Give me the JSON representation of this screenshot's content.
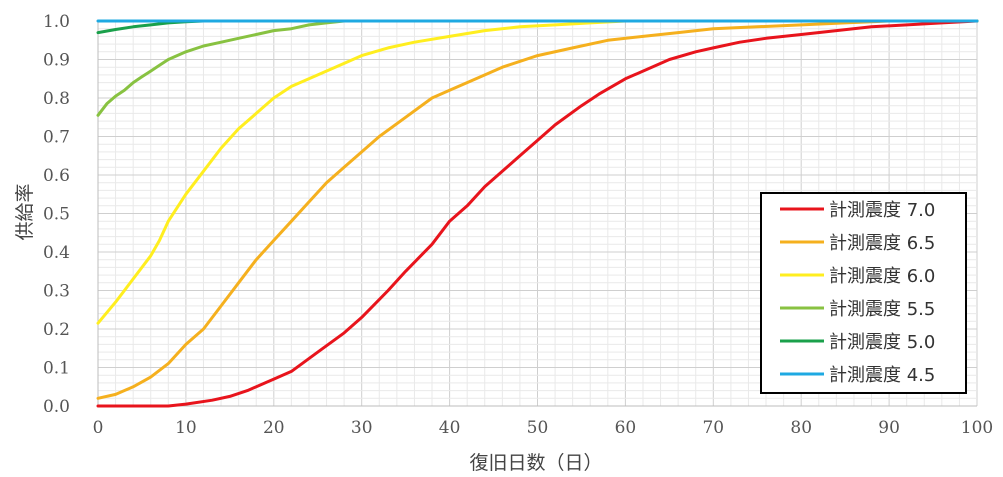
{
  "chart_data": {
    "type": "line",
    "title": "",
    "xlabel": "復旧日数（日）",
    "ylabel": "供給率",
    "xlim": [
      0,
      100
    ],
    "ylim": [
      0,
      1
    ],
    "xticks": [
      0,
      10,
      20,
      30,
      40,
      50,
      60,
      70,
      80,
      90,
      100
    ],
    "yticks": [
      "0.0",
      "0.1",
      "0.2",
      "0.3",
      "0.4",
      "0.5",
      "0.6",
      "0.7",
      "0.8",
      "0.9",
      "1.0"
    ],
    "grid": "on (major and minor)",
    "legend_placement": "bottom-right",
    "series": [
      {
        "name": "計測震度 7.0",
        "color": "#e8141c",
        "points": [
          [
            0,
            0
          ],
          [
            8,
            0
          ],
          [
            10,
            0.005
          ],
          [
            13,
            0.015
          ],
          [
            15,
            0.025
          ],
          [
            17,
            0.04
          ],
          [
            20,
            0.07
          ],
          [
            22,
            0.09
          ],
          [
            25,
            0.14
          ],
          [
            28,
            0.19
          ],
          [
            30,
            0.23
          ],
          [
            33,
            0.3
          ],
          [
            35,
            0.35
          ],
          [
            38,
            0.42
          ],
          [
            40,
            0.48
          ],
          [
            42,
            0.52
          ],
          [
            44,
            0.57
          ],
          [
            46,
            0.61
          ],
          [
            48,
            0.65
          ],
          [
            50,
            0.69
          ],
          [
            52,
            0.73
          ],
          [
            55,
            0.78
          ],
          [
            57,
            0.81
          ],
          [
            60,
            0.85
          ],
          [
            63,
            0.88
          ],
          [
            65,
            0.9
          ],
          [
            68,
            0.92
          ],
          [
            70,
            0.93
          ],
          [
            73,
            0.945
          ],
          [
            76,
            0.955
          ],
          [
            80,
            0.965
          ],
          [
            84,
            0.975
          ],
          [
            88,
            0.985
          ],
          [
            92,
            0.99
          ],
          [
            96,
            0.995
          ],
          [
            100,
            1.0
          ]
        ]
      },
      {
        "name": "計測震度 6.5",
        "color": "#f5b01e",
        "points": [
          [
            0,
            0.02
          ],
          [
            2,
            0.03
          ],
          [
            4,
            0.05
          ],
          [
            6,
            0.075
          ],
          [
            8,
            0.11
          ],
          [
            10,
            0.16
          ],
          [
            12,
            0.2
          ],
          [
            14,
            0.26
          ],
          [
            16,
            0.32
          ],
          [
            18,
            0.38
          ],
          [
            20,
            0.43
          ],
          [
            22,
            0.48
          ],
          [
            24,
            0.53
          ],
          [
            26,
            0.58
          ],
          [
            28,
            0.62
          ],
          [
            30,
            0.66
          ],
          [
            32,
            0.7
          ],
          [
            35,
            0.75
          ],
          [
            38,
            0.8
          ],
          [
            40,
            0.82
          ],
          [
            43,
            0.85
          ],
          [
            46,
            0.88
          ],
          [
            50,
            0.91
          ],
          [
            54,
            0.93
          ],
          [
            58,
            0.95
          ],
          [
            62,
            0.96
          ],
          [
            66,
            0.97
          ],
          [
            70,
            0.98
          ],
          [
            75,
            0.985
          ],
          [
            80,
            0.99
          ],
          [
            85,
            0.995
          ],
          [
            90,
            1.0
          ],
          [
            100,
            1.0
          ]
        ]
      },
      {
        "name": "計測震度 6.0",
        "color": "#ffee1f",
        "points": [
          [
            0,
            0.215
          ],
          [
            2,
            0.27
          ],
          [
            4,
            0.33
          ],
          [
            6,
            0.39
          ],
          [
            7,
            0.43
          ],
          [
            8,
            0.48
          ],
          [
            10,
            0.55
          ],
          [
            12,
            0.61
          ],
          [
            14,
            0.67
          ],
          [
            16,
            0.72
          ],
          [
            18,
            0.76
          ],
          [
            20,
            0.8
          ],
          [
            22,
            0.83
          ],
          [
            25,
            0.86
          ],
          [
            28,
            0.89
          ],
          [
            30,
            0.91
          ],
          [
            33,
            0.93
          ],
          [
            36,
            0.945
          ],
          [
            40,
            0.96
          ],
          [
            44,
            0.975
          ],
          [
            48,
            0.985
          ],
          [
            52,
            0.99
          ],
          [
            56,
            0.995
          ],
          [
            60,
            1.0
          ],
          [
            100,
            1.0
          ]
        ]
      },
      {
        "name": "計測震度 5.5",
        "color": "#88c241",
        "points": [
          [
            0,
            0.755
          ],
          [
            1,
            0.785
          ],
          [
            2,
            0.805
          ],
          [
            3,
            0.82
          ],
          [
            4,
            0.84
          ],
          [
            5,
            0.855
          ],
          [
            6,
            0.87
          ],
          [
            7,
            0.885
          ],
          [
            8,
            0.9
          ],
          [
            10,
            0.92
          ],
          [
            12,
            0.935
          ],
          [
            14,
            0.945
          ],
          [
            16,
            0.955
          ],
          [
            18,
            0.965
          ],
          [
            20,
            0.975
          ],
          [
            22,
            0.98
          ],
          [
            24,
            0.99
          ],
          [
            26,
            0.995
          ],
          [
            28,
            1.0
          ],
          [
            100,
            1.0
          ]
        ]
      },
      {
        "name": "計測震度 5.0",
        "color": "#1aa04b",
        "points": [
          [
            0,
            0.97
          ],
          [
            2,
            0.978
          ],
          [
            4,
            0.985
          ],
          [
            6,
            0.99
          ],
          [
            8,
            0.995
          ],
          [
            10,
            0.998
          ],
          [
            12,
            1.0
          ],
          [
            100,
            1.0
          ]
        ]
      },
      {
        "name": "計測震度 4.5",
        "color": "#1ea9e2",
        "points": [
          [
            0,
            1.0
          ],
          [
            100,
            1.0
          ]
        ]
      }
    ]
  }
}
